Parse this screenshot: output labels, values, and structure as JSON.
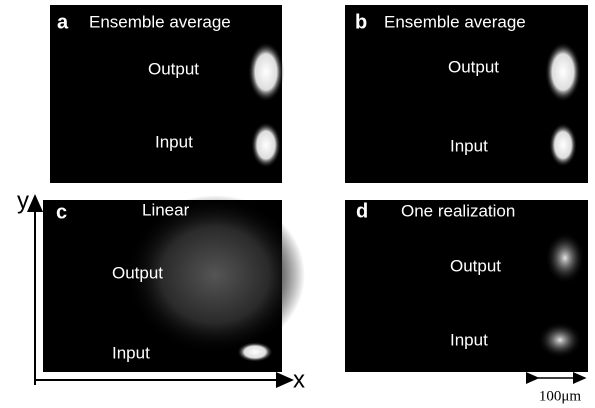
{
  "panels": [
    {
      "letter": "a",
      "title": "Ensemble average",
      "upper": "Output",
      "lower": "Input"
    },
    {
      "letter": "b",
      "title": "Ensemble average",
      "upper": "Output",
      "lower": "Input"
    },
    {
      "letter": "c",
      "title": "Linear",
      "upper": "Output",
      "lower": "Input"
    },
    {
      "letter": "d",
      "title": "One realization",
      "upper": "Output",
      "lower": "Input"
    }
  ],
  "axes": {
    "x": "x",
    "y": "y"
  },
  "scale_bar": "100μm"
}
